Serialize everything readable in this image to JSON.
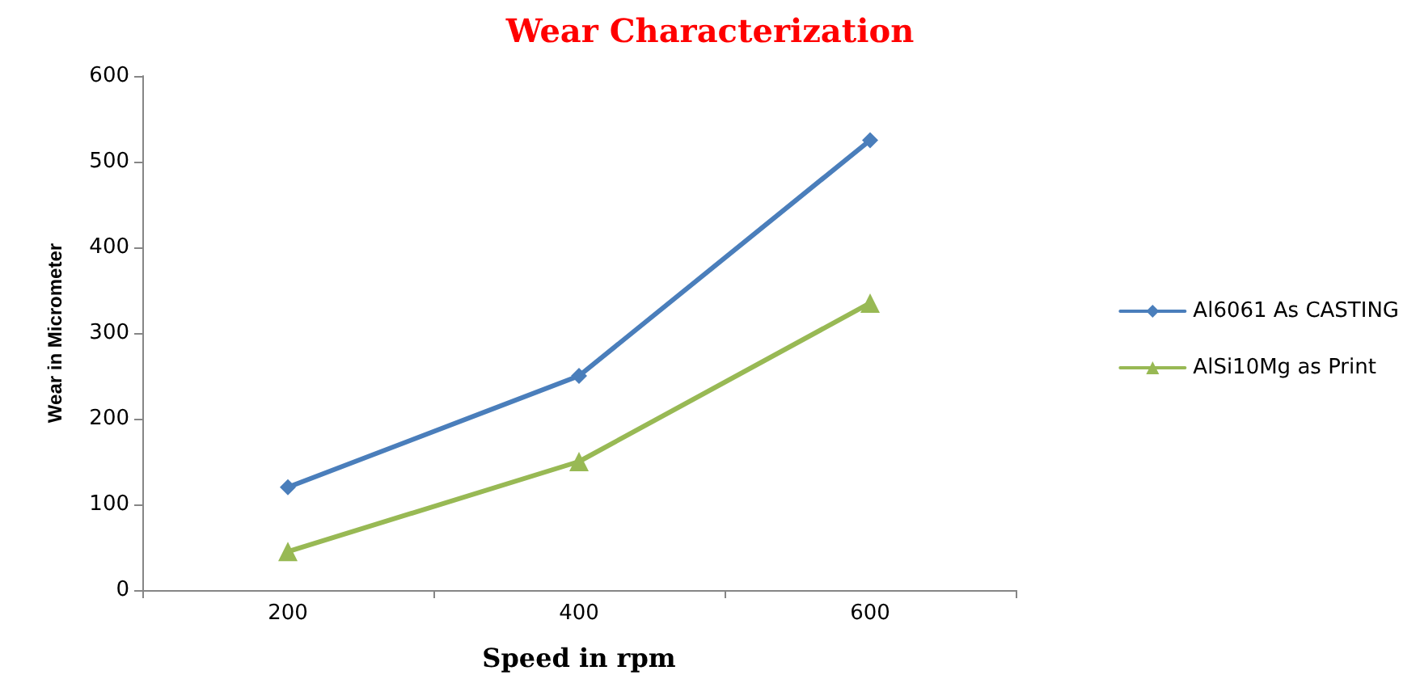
{
  "chart_data": {
    "type": "line",
    "title": "Wear Characterization",
    "xlabel": "Speed in rpm",
    "ylabel": "Wear in Micrometer",
    "categories": [
      "200",
      "400",
      "600"
    ],
    "series": [
      {
        "name": "Al6061 As CASTING",
        "color": "#4a7ebb",
        "values": [
          120,
          250,
          525
        ],
        "marker": "diamond"
      },
      {
        "name": "AlSi10Mg as Print",
        "color": "#98b954",
        "values": [
          45,
          150,
          335
        ],
        "marker": "triangle"
      }
    ],
    "ylim": [
      0,
      600
    ],
    "yticks": [
      0,
      100,
      200,
      300,
      400,
      500,
      600
    ],
    "grid": false,
    "legend": "right",
    "line_style": "solid"
  }
}
